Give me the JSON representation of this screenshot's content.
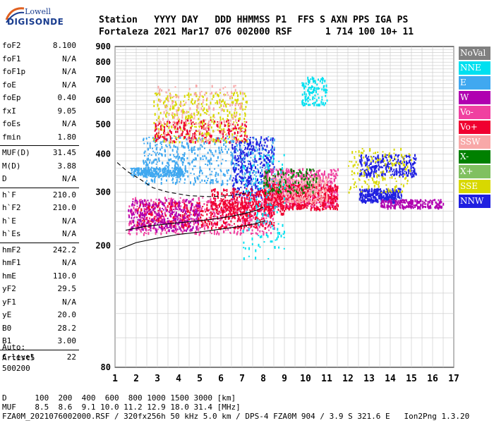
{
  "logo": {
    "line1": "Lowell",
    "line2": "DIGISONDE"
  },
  "header": {
    "labels": "Station   YYYY DAY   DDD HHMMSS P1  FFS S AXN PPS IGA PS",
    "values": "Fortaleza 2021 Mar17 076 002000 RSF      1 714 100 10+ 11"
  },
  "params": {
    "group1": [
      {
        "k": "foF2",
        "v": "8.100"
      },
      {
        "k": "foF1",
        "v": "N/A"
      },
      {
        "k": "foF1p",
        "v": "N/A"
      },
      {
        "k": "foE",
        "v": "N/A"
      },
      {
        "k": "foEp",
        "v": "0.40"
      },
      {
        "k": "fxI",
        "v": "9.05"
      },
      {
        "k": "foEs",
        "v": "N/A"
      },
      {
        "k": "fmin",
        "v": "1.80"
      }
    ],
    "group2": [
      {
        "k": "MUF(D)",
        "v": "31.45"
      },
      {
        "k": "M(D)",
        "v": "3.88"
      },
      {
        "k": "D",
        "v": "N/A"
      }
    ],
    "group3": [
      {
        "k": "h`F",
        "v": "210.0"
      },
      {
        "k": "h`F2",
        "v": "210.0"
      },
      {
        "k": "h`E",
        "v": "N/A"
      },
      {
        "k": "h`Es",
        "v": "N/A"
      }
    ],
    "group4": [
      {
        "k": "hmF2",
        "v": "242.2"
      },
      {
        "k": "hmF1",
        "v": "N/A"
      },
      {
        "k": "hmE",
        "v": "110.0"
      },
      {
        "k": "yF2",
        "v": "29.5"
      },
      {
        "k": "yF1",
        "v": "N/A"
      },
      {
        "k": "yE",
        "v": "20.0"
      },
      {
        "k": "B0",
        "v": "28.2"
      },
      {
        "k": "B1",
        "v": "3.00"
      }
    ],
    "group5": [
      {
        "k": "C-level",
        "v": "22"
      }
    ]
  },
  "auto": {
    "line1": "Auto:",
    "line2": "Artist5",
    "line3": "500200"
  },
  "footer": {
    "d_line": "D      100  200  400  600  800 1000 1500 3000 [km]",
    "muf_line": "MUF    8.5  8.6  9.1 10.0 11.2 12.9 18.0 31.4 [MHz]",
    "file_line": "FZA0M_2021076002000.RSF / 320fx256h 50 kHz 5.0 km / DPS-4 FZA0M 904 / 3.9 S 321.6 E   Ion2Png 1.3.20"
  },
  "legend": [
    {
      "label": "NoVal",
      "color": "#808080"
    },
    {
      "label": "NNE",
      "color": "#00e0f0"
    },
    {
      "label": "E",
      "color": "#40a8f0"
    },
    {
      "label": "W",
      "color": "#b000b0"
    },
    {
      "label": "Vo-",
      "color": "#f040a0"
    },
    {
      "label": "Vo+",
      "color": "#f00030"
    },
    {
      "label": "SSW",
      "color": "#f8a8a8"
    },
    {
      "label": "X-",
      "color": "#008000"
    },
    {
      "label": "X+",
      "color": "#80c060"
    },
    {
      "label": "SSE",
      "color": "#d8d800"
    },
    {
      "label": "NNW",
      "color": "#2020e0"
    }
  ],
  "chart_data": {
    "type": "scatter",
    "title": "",
    "xlabel": "",
    "ylabel": "",
    "xlim": [
      1,
      17
    ],
    "ylim": [
      80,
      900
    ],
    "xticks": [
      "1",
      "2",
      "3",
      "4",
      "5",
      "6",
      "7",
      "8",
      "9",
      "10",
      "11",
      "12",
      "13",
      "14",
      "15",
      "16",
      "17"
    ],
    "yticks": [
      "80",
      "200",
      "300",
      "400",
      "500",
      "600",
      "700",
      "800",
      "900"
    ],
    "yscale": "log",
    "grid": true,
    "legend_position": "right",
    "curves": {
      "profile_lower": [
        [
          1.2,
          195
        ],
        [
          2,
          205
        ],
        [
          3,
          212
        ],
        [
          4,
          218
        ],
        [
          5,
          222
        ],
        [
          6,
          227
        ],
        [
          7,
          232
        ],
        [
          7.6,
          236
        ],
        [
          8.1,
          242
        ]
      ],
      "profile_upper": [
        [
          1.5,
          225
        ],
        [
          2.5,
          232
        ],
        [
          3.5,
          236
        ],
        [
          4.5,
          240
        ],
        [
          5.5,
          244
        ],
        [
          6.5,
          250
        ],
        [
          7.3,
          257
        ],
        [
          7.7,
          262
        ],
        [
          8.0,
          268
        ]
      ],
      "dashed": [
        [
          1.1,
          375
        ],
        [
          1.6,
          350
        ],
        [
          2.2,
          330
        ],
        [
          2.8,
          310
        ],
        [
          3.5,
          300
        ],
        [
          4.5,
          292
        ],
        [
          5.5,
          290
        ],
        [
          6.5,
          292
        ],
        [
          7.4,
          300
        ]
      ]
    },
    "clusters": [
      {
        "series": "Vo-",
        "x": [
          1.6,
          8.5
        ],
        "y": [
          220,
          290
        ],
        "n": 600
      },
      {
        "series": "Vo+",
        "x": [
          2.0,
          8.5
        ],
        "y": [
          230,
          280
        ],
        "n": 450
      },
      {
        "series": "W",
        "x": [
          1.6,
          5.0
        ],
        "y": [
          225,
          285
        ],
        "n": 300
      },
      {
        "series": "E",
        "x": [
          2.3,
          8.5
        ],
        "y": [
          320,
          460
        ],
        "n": 550
      },
      {
        "series": "E",
        "x": [
          1.7,
          4.2
        ],
        "y": [
          340,
          362
        ],
        "n": 250
      },
      {
        "series": "NNW",
        "x": [
          6.5,
          8.5
        ],
        "y": [
          290,
          460
        ],
        "n": 300
      },
      {
        "series": "SSE",
        "x": [
          2.8,
          7.2
        ],
        "y": [
          440,
          640
        ],
        "n": 350
      },
      {
        "series": "Vo+",
        "x": [
          2.8,
          7.2
        ],
        "y": [
          440,
          520
        ],
        "n": 200
      },
      {
        "series": "SSW",
        "x": [
          3.0,
          7.0
        ],
        "y": [
          440,
          680
        ],
        "n": 200
      },
      {
        "series": "Vo-",
        "x": [
          8.0,
          11.5
        ],
        "y": [
          270,
          360
        ],
        "n": 700
      },
      {
        "series": "Vo+",
        "x": [
          8.0,
          11.5
        ],
        "y": [
          265,
          320
        ],
        "n": 500
      },
      {
        "series": "SSW",
        "x": [
          8.0,
          11.0
        ],
        "y": [
          280,
          340
        ],
        "n": 300
      },
      {
        "series": "NNE",
        "x": [
          9.8,
          11.0
        ],
        "y": [
          580,
          720
        ],
        "n": 120
      },
      {
        "series": "NNW",
        "x": [
          12.5,
          14.5
        ],
        "y": [
          280,
          310
        ],
        "n": 300
      },
      {
        "series": "NNW",
        "x": [
          12.5,
          15.2
        ],
        "y": [
          340,
          400
        ],
        "n": 260
      },
      {
        "series": "W",
        "x": [
          13.5,
          16.5
        ],
        "y": [
          268,
          285
        ],
        "n": 200
      },
      {
        "series": "SSE",
        "x": [
          12.0,
          15.0
        ],
        "y": [
          300,
          420
        ],
        "n": 150
      },
      {
        "series": "Vo+",
        "x": [
          5.5,
          9.0
        ],
        "y": [
          255,
          310
        ],
        "n": 300
      },
      {
        "series": "X-",
        "x": [
          8.0,
          10.5
        ],
        "y": [
          300,
          360
        ],
        "n": 120
      },
      {
        "series": "NNE",
        "x": [
          7.0,
          9.0
        ],
        "y": [
          180,
          400
        ],
        "n": 120
      }
    ]
  }
}
